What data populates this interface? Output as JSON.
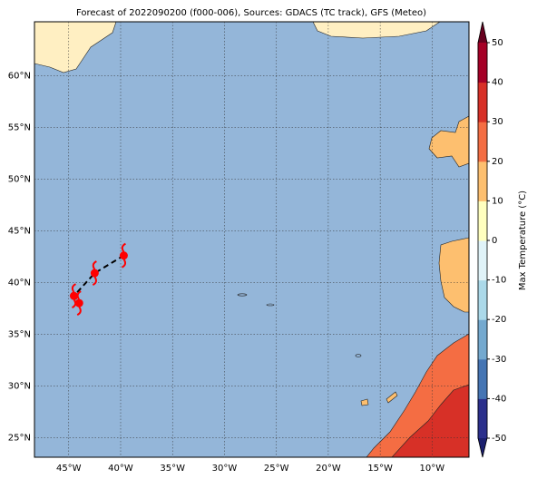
{
  "chart_data": {
    "type": "map",
    "title": "Forecast of 2022090200 (f000-006), Sources: GDACS (TC track), GFS (Meteo)",
    "xlim": [
      -48.3,
      -6.45
    ],
    "ylim": [
      23.1,
      65.2
    ],
    "xticks": [
      {
        "value": -45,
        "label": "45°W"
      },
      {
        "value": -40,
        "label": "40°W"
      },
      {
        "value": -35,
        "label": "35°W"
      },
      {
        "value": -30,
        "label": "30°W"
      },
      {
        "value": -25,
        "label": "25°W"
      },
      {
        "value": -20,
        "label": "20°W"
      },
      {
        "value": -15,
        "label": "15°W"
      },
      {
        "value": -10,
        "label": "10°W"
      }
    ],
    "yticks": [
      {
        "value": 25,
        "label": "25°N"
      },
      {
        "value": 30,
        "label": "30°N"
      },
      {
        "value": 35,
        "label": "35°N"
      },
      {
        "value": 40,
        "label": "40°N"
      },
      {
        "value": 45,
        "label": "45°N"
      },
      {
        "value": 50,
        "label": "50°N"
      },
      {
        "value": 55,
        "label": "55°N"
      },
      {
        "value": 60,
        "label": "60°N"
      }
    ],
    "grid": true,
    "track": {
      "color": "#ff0000",
      "lon": [
        -39.7,
        -42.5,
        -44.5,
        -44.0
      ],
      "lat": [
        42.6,
        40.9,
        38.7,
        38.0
      ]
    },
    "colorbar": {
      "label": "Max Temperature (°C)",
      "clim": [
        -50,
        50
      ],
      "ticks": [
        -50,
        -40,
        -30,
        -20,
        -10,
        0,
        10,
        20,
        30,
        40,
        50
      ],
      "colors": [
        "#2b2f8c",
        "#4575b4",
        "#74a9cf",
        "#abd9e9",
        "#e0f3f8",
        "#ffffbf",
        "#fdbf6f",
        "#f46d43",
        "#d73027",
        "#a50026"
      ],
      "under_color": "#1b1f6e",
      "over_color": "#67001f"
    }
  }
}
